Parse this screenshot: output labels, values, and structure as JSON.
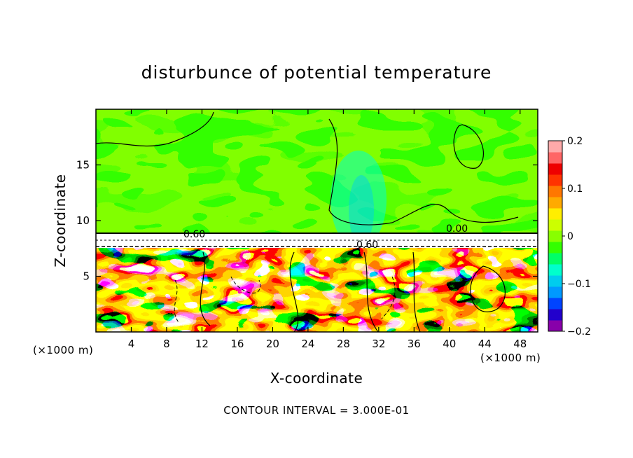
{
  "chart_data": {
    "type": "heatmap",
    "title": "disturbunce of potential temperature",
    "xlabel": "X-coordinate",
    "ylabel": "Z-coordinate",
    "x_unit_label": "(×1000 m)",
    "z_unit_label": "(×1000 m)",
    "xlim": [
      0,
      50
    ],
    "ylim": [
      0,
      20
    ],
    "x_ticks": [
      "4",
      "8",
      "12",
      "16",
      "20",
      "24",
      "28",
      "32",
      "36",
      "40",
      "44",
      "48"
    ],
    "x_tick_values": [
      4,
      8,
      12,
      16,
      20,
      24,
      28,
      32,
      36,
      40,
      44,
      48
    ],
    "y_ticks": [
      "5",
      "10",
      "15"
    ],
    "y_tick_values": [
      5,
      10,
      15
    ],
    "colorbar": {
      "min": -0.2,
      "max": 0.2,
      "tick_labels": [
        "0.2",
        "0.1",
        "0",
        "−0.1",
        "−0.2"
      ],
      "tick_values": [
        0.2,
        0.1,
        0,
        -0.1,
        -0.2
      ],
      "colors": [
        "#8800aa",
        "#2200cc",
        "#0044ff",
        "#0099ff",
        "#00ccee",
        "#00ffcc",
        "#00ff66",
        "#33ff00",
        "#88ff00",
        "#ccff00",
        "#ffee00",
        "#ffaa00",
        "#ff7700",
        "#ff3300",
        "#ee0000",
        "#ff6666",
        "#ffaaaa"
      ]
    },
    "contour_labels": [
      "0.60",
      "0.00",
      "0.60"
    ],
    "contour_label_values": [
      0.6,
      0.0,
      0.6
    ],
    "footer": "CONTOUR INTERVAL = 3.000E-01"
  }
}
